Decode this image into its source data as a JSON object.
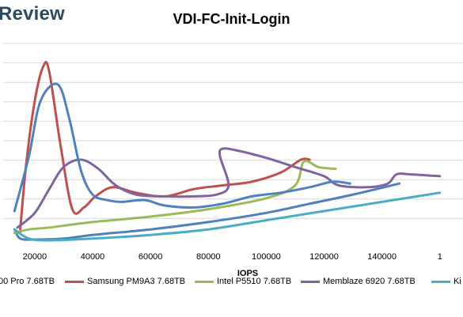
{
  "brand": "Review",
  "chart_data": {
    "type": "line",
    "title": "VDI-FC-Init-Login",
    "xlabel": "IOPS",
    "ylabel": "",
    "x_ticks": [
      "20000",
      "40000",
      "60000",
      "80000",
      "100000",
      "120000",
      "140000",
      "1"
    ],
    "grid": true,
    "legend_position": "bottom",
    "series": [
      {
        "name": "00 Pro 7.68TB",
        "color": "#4f81bd",
        "points": [
          [
            13000,
            -1.0
          ],
          [
            15000,
            -1.5
          ],
          [
            20000,
            -1.55
          ],
          [
            30000,
            -1.5
          ],
          [
            40000,
            -1.3
          ],
          [
            60000,
            -1.0
          ],
          [
            80000,
            -0.6
          ],
          [
            100000,
            -0.1
          ],
          [
            115000,
            0.4
          ],
          [
            130000,
            0.9
          ],
          [
            146000,
            1.5
          ]
        ]
      },
      {
        "name": "Samsung PM9A3 7.68TB",
        "color": "#c0504d",
        "points": [
          [
            15000,
            -1.0
          ],
          [
            17000,
            2.5
          ],
          [
            20000,
            6.0
          ],
          [
            23000,
            7.9
          ],
          [
            25000,
            7.6
          ],
          [
            29000,
            3.5
          ],
          [
            33000,
            0.1
          ],
          [
            37000,
            0.2
          ],
          [
            41000,
            0.8
          ],
          [
            47000,
            1.3
          ],
          [
            55000,
            1.0
          ],
          [
            65000,
            0.8
          ],
          [
            75000,
            1.2
          ],
          [
            85000,
            1.4
          ],
          [
            95000,
            1.6
          ],
          [
            105000,
            2.1
          ],
          [
            112000,
            2.8
          ],
          [
            115000,
            2.8
          ]
        ]
      },
      {
        "name": "Intel P5510 7.68TB",
        "color": "#9bbb59",
        "points": [
          [
            13000,
            -1.2
          ],
          [
            18000,
            -1.0
          ],
          [
            25000,
            -0.9
          ],
          [
            40000,
            -0.6
          ],
          [
            60000,
            -0.3
          ],
          [
            80000,
            0.1
          ],
          [
            100000,
            0.7
          ],
          [
            110000,
            1.4
          ],
          [
            113000,
            2.7
          ],
          [
            118000,
            2.4
          ],
          [
            124000,
            2.3
          ]
        ]
      },
      {
        "name": "Memblaze 6920 7.68TB",
        "color": "#8064a2",
        "points": [
          [
            14000,
            -0.9
          ],
          [
            20000,
            -0.1
          ],
          [
            25000,
            1.2
          ],
          [
            30000,
            2.4
          ],
          [
            36000,
            2.8
          ],
          [
            42000,
            2.3
          ],
          [
            48000,
            1.4
          ],
          [
            55000,
            0.9
          ],
          [
            65000,
            0.8
          ],
          [
            75000,
            0.8
          ],
          [
            83000,
            0.9
          ],
          [
            87000,
            1.4
          ],
          [
            84000,
            3.0
          ],
          [
            85000,
            3.4
          ],
          [
            90000,
            3.3
          ],
          [
            100000,
            2.9
          ],
          [
            110000,
            2.4
          ],
          [
            120000,
            1.9
          ],
          [
            125000,
            1.4
          ],
          [
            135000,
            1.3
          ],
          [
            142000,
            1.5
          ],
          [
            145000,
            2.0
          ],
          [
            150000,
            2.0
          ],
          [
            160000,
            1.9
          ]
        ]
      },
      {
        "name": "Ki",
        "color": "#4bacc6",
        "points": [
          [
            13000,
            -1.0
          ],
          [
            18000,
            -1.5
          ],
          [
            25000,
            -1.6
          ],
          [
            40000,
            -1.5
          ],
          [
            60000,
            -1.3
          ],
          [
            80000,
            -1.0
          ],
          [
            100000,
            -0.5
          ],
          [
            120000,
            0.0
          ],
          [
            140000,
            0.5
          ],
          [
            160000,
            1.0
          ]
        ]
      },
      {
        "name": "",
        "color": "#4f81bd",
        "points": [
          [
            13000,
            0.0
          ],
          [
            18000,
            3.0
          ],
          [
            22000,
            6.0
          ],
          [
            28000,
            6.9
          ],
          [
            32000,
            5.0
          ],
          [
            36000,
            2.2
          ],
          [
            40000,
            0.9
          ],
          [
            45000,
            0.6
          ],
          [
            50000,
            0.5
          ],
          [
            58000,
            0.6
          ],
          [
            65000,
            0.3
          ],
          [
            75000,
            0.2
          ],
          [
            85000,
            0.4
          ],
          [
            95000,
            0.8
          ],
          [
            105000,
            1.0
          ],
          [
            115000,
            1.3
          ],
          [
            123000,
            1.6
          ],
          [
            129000,
            1.5
          ]
        ]
      }
    ]
  }
}
